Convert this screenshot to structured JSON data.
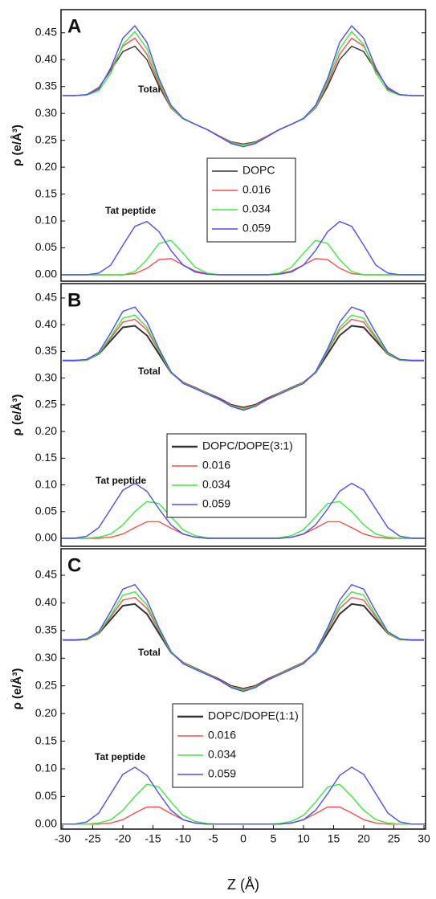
{
  "chart_data": [
    {
      "type": "line",
      "panel_label": "A",
      "ylabel": "ρ (e/Å³)",
      "xlim": [
        -30,
        30
      ],
      "ylim": [
        -0.012,
        0.493
      ],
      "x": [
        -30,
        -28,
        -26,
        -24,
        -22,
        -20,
        -18,
        -16,
        -14,
        -12,
        -10,
        -8,
        -6,
        -4,
        -2,
        0,
        2,
        4,
        6,
        8,
        10,
        12,
        14,
        16,
        18,
        20,
        22,
        24,
        26,
        28,
        30
      ],
      "yticks": [
        {
          "value": 0,
          "label": "0.00"
        },
        {
          "value": 0.05,
          "label": "0.05"
        },
        {
          "value": 0.1,
          "label": "0.10"
        },
        {
          "value": 0.15,
          "label": "0.15"
        },
        {
          "value": 0.2,
          "label": "0.20"
        },
        {
          "value": 0.25,
          "label": "0.25"
        },
        {
          "value": 0.3,
          "label": "0.30"
        },
        {
          "value": 0.35,
          "label": "0.35"
        },
        {
          "value": 0.4,
          "label": "0.40"
        },
        {
          "value": 0.45,
          "label": "0.45"
        }
      ],
      "legend": "center",
      "total_label": "Total",
      "series": [
        {
          "name": "DOPC",
          "color": "#333333",
          "values": [
            0.333,
            0.333,
            0.335,
            0.348,
            0.38,
            0.415,
            0.425,
            0.4,
            0.35,
            0.31,
            0.29,
            0.28,
            0.27,
            0.258,
            0.247,
            0.243,
            0.247,
            0.258,
            0.27,
            0.28,
            0.29,
            0.31,
            0.35,
            0.4,
            0.425,
            0.415,
            0.38,
            0.348,
            0.335,
            0.333,
            0.333
          ]
        },
        {
          "name": "0.016",
          "color": "#f0524f",
          "values": [
            0.333,
            0.333,
            0.335,
            0.347,
            0.382,
            0.425,
            0.44,
            0.41,
            0.355,
            0.31,
            0.29,
            0.28,
            0.27,
            0.258,
            0.246,
            0.242,
            0.246,
            0.258,
            0.27,
            0.28,
            0.29,
            0.31,
            0.355,
            0.41,
            0.44,
            0.425,
            0.382,
            0.347,
            0.335,
            0.333,
            0.333
          ]
        },
        {
          "name": "0.034",
          "color": "#3ee83e",
          "values": [
            0.333,
            0.333,
            0.334,
            0.342,
            0.375,
            0.428,
            0.452,
            0.42,
            0.36,
            0.312,
            0.29,
            0.28,
            0.27,
            0.257,
            0.245,
            0.241,
            0.245,
            0.257,
            0.27,
            0.28,
            0.29,
            0.312,
            0.36,
            0.42,
            0.452,
            0.428,
            0.375,
            0.342,
            0.334,
            0.333,
            0.333
          ]
        },
        {
          "name": "0.059",
          "color": "#4f4ff0",
          "values": [
            0.333,
            0.333,
            0.335,
            0.345,
            0.385,
            0.44,
            0.463,
            0.432,
            0.365,
            0.315,
            0.291,
            0.28,
            0.27,
            0.257,
            0.244,
            0.238,
            0.244,
            0.257,
            0.27,
            0.28,
            0.291,
            0.315,
            0.365,
            0.432,
            0.463,
            0.44,
            0.385,
            0.345,
            0.335,
            0.333,
            0.333
          ]
        }
      ],
      "tat_peptide": {
        "label": "Tat peptide",
        "series": [
          {
            "values": [
              0,
              0,
              0,
              0,
              0,
              0,
              0.002,
              0.012,
              0.028,
              0.03,
              0.018,
              0.007,
              0.002,
              0,
              0,
              0,
              0,
              0,
              0.002,
              0.007,
              0.018,
              0.03,
              0.028,
              0.012,
              0.002,
              0,
              0,
              0,
              0,
              0,
              0
            ]
          },
          {
            "values": [
              0,
              0,
              0,
              0,
              0,
              0,
              0.006,
              0.028,
              0.058,
              0.064,
              0.04,
              0.014,
              0.003,
              0,
              0,
              0,
              0,
              0,
              0.003,
              0.014,
              0.04,
              0.064,
              0.058,
              0.028,
              0.006,
              0,
              0,
              0,
              0,
              0,
              0
            ]
          },
          {
            "values": [
              0,
              0,
              0,
              0.003,
              0.018,
              0.055,
              0.09,
              0.099,
              0.08,
              0.045,
              0.018,
              0.005,
              0.001,
              0,
              0,
              0,
              0,
              0,
              0.001,
              0.005,
              0.018,
              0.045,
              0.08,
              0.099,
              0.09,
              0.055,
              0.018,
              0.003,
              0,
              0,
              0
            ]
          }
        ]
      }
    },
    {
      "type": "line",
      "panel_label": "B",
      "ylabel": "ρ (e/Å³)",
      "xlim": [
        -30,
        30
      ],
      "ylim": [
        -0.015,
        0.477
      ],
      "x": [
        -30,
        -28,
        -26,
        -24,
        -22,
        -20,
        -18,
        -16,
        -14,
        -12,
        -10,
        -8,
        -6,
        -4,
        -2,
        0,
        2,
        4,
        6,
        8,
        10,
        12,
        14,
        16,
        18,
        20,
        22,
        24,
        26,
        28,
        30
      ],
      "yticks": [
        {
          "value": 0,
          "label": "0.00"
        },
        {
          "value": 0.05,
          "label": "0.05"
        },
        {
          "value": 0.1,
          "label": "0.10"
        },
        {
          "value": 0.15,
          "label": "0.15"
        },
        {
          "value": 0.2,
          "label": "0.20"
        },
        {
          "value": 0.25,
          "label": "0.25"
        },
        {
          "value": 0.3,
          "label": "0.30"
        },
        {
          "value": 0.35,
          "label": "0.35"
        },
        {
          "value": 0.4,
          "label": "0.40"
        },
        {
          "value": 0.45,
          "label": "0.45"
        }
      ],
      "legend": "center",
      "total_label": "Total",
      "series": [
        {
          "name": "DOPC/DOPE(3:1)",
          "color": "#333333",
          "values": [
            0.333,
            0.333,
            0.334,
            0.345,
            0.37,
            0.395,
            0.398,
            0.38,
            0.345,
            0.31,
            0.292,
            0.282,
            0.272,
            0.262,
            0.25,
            0.245,
            0.25,
            0.262,
            0.272,
            0.282,
            0.292,
            0.31,
            0.345,
            0.38,
            0.398,
            0.395,
            0.37,
            0.345,
            0.334,
            0.333,
            0.333
          ]
        },
        {
          "name": "0.016",
          "color": "#f0524f",
          "values": [
            0.333,
            0.333,
            0.334,
            0.345,
            0.375,
            0.405,
            0.41,
            0.39,
            0.35,
            0.31,
            0.292,
            0.282,
            0.272,
            0.261,
            0.249,
            0.244,
            0.249,
            0.261,
            0.272,
            0.282,
            0.292,
            0.31,
            0.35,
            0.39,
            0.41,
            0.405,
            0.375,
            0.345,
            0.334,
            0.333,
            0.333
          ]
        },
        {
          "name": "0.034",
          "color": "#3ee83e",
          "values": [
            0.333,
            0.333,
            0.334,
            0.346,
            0.378,
            0.412,
            0.418,
            0.395,
            0.352,
            0.31,
            0.291,
            0.281,
            0.271,
            0.26,
            0.248,
            0.242,
            0.248,
            0.26,
            0.271,
            0.281,
            0.291,
            0.31,
            0.352,
            0.395,
            0.418,
            0.412,
            0.378,
            0.346,
            0.334,
            0.333,
            0.333
          ]
        },
        {
          "name": "0.059",
          "color": "#4f4ff0",
          "values": [
            0.333,
            0.333,
            0.335,
            0.348,
            0.385,
            0.425,
            0.433,
            0.405,
            0.355,
            0.312,
            0.29,
            0.28,
            0.27,
            0.26,
            0.247,
            0.24,
            0.247,
            0.26,
            0.27,
            0.28,
            0.29,
            0.312,
            0.355,
            0.405,
            0.433,
            0.425,
            0.385,
            0.348,
            0.335,
            0.333,
            0.333
          ]
        }
      ],
      "tat_peptide": {
        "label": "Tat peptide",
        "series": [
          {
            "values": [
              0,
              0,
              0,
              0,
              0.002,
              0.008,
              0.02,
              0.031,
              0.031,
              0.019,
              0.008,
              0.002,
              0,
              0,
              0,
              0,
              0,
              0,
              0,
              0.002,
              0.008,
              0.019,
              0.031,
              0.031,
              0.02,
              0.008,
              0.002,
              0,
              0,
              0,
              0
            ]
          },
          {
            "values": [
              0,
              0,
              0,
              0.002,
              0.008,
              0.025,
              0.05,
              0.069,
              0.065,
              0.04,
              0.016,
              0.005,
              0.001,
              0,
              0,
              0,
              0,
              0,
              0.001,
              0.005,
              0.016,
              0.04,
              0.065,
              0.069,
              0.05,
              0.025,
              0.008,
              0.002,
              0,
              0,
              0
            ]
          },
          {
            "values": [
              0,
              0,
              0.004,
              0.02,
              0.055,
              0.09,
              0.103,
              0.088,
              0.055,
              0.025,
              0.008,
              0.002,
              0,
              0,
              0,
              0,
              0,
              0,
              0,
              0.002,
              0.008,
              0.025,
              0.055,
              0.088,
              0.103,
              0.09,
              0.055,
              0.02,
              0.004,
              0,
              0
            ]
          }
        ]
      }
    },
    {
      "type": "line",
      "panel_label": "C",
      "ylabel": "ρ (e/Å³)",
      "xlabel": "Z (Å)",
      "xlim": [
        -30,
        30
      ],
      "ylim": [
        -0.009,
        0.498
      ],
      "x": [
        -30,
        -28,
        -26,
        -24,
        -22,
        -20,
        -18,
        -16,
        -14,
        -12,
        -10,
        -8,
        -6,
        -4,
        -2,
        0,
        2,
        4,
        6,
        8,
        10,
        12,
        14,
        16,
        18,
        20,
        22,
        24,
        26,
        28,
        30
      ],
      "xticks": [
        -30,
        -25,
        -20,
        -15,
        -10,
        -5,
        0,
        5,
        10,
        15,
        20,
        25,
        30
      ],
      "yticks": [
        {
          "value": 0,
          "label": "0.00"
        },
        {
          "value": 0.05,
          "label": "0.05"
        },
        {
          "value": 0.1,
          "label": "0.10"
        },
        {
          "value": 0.15,
          "label": "0.15"
        },
        {
          "value": 0.2,
          "label": "0.20"
        },
        {
          "value": 0.25,
          "label": "0.25"
        },
        {
          "value": 0.3,
          "label": "0.30"
        },
        {
          "value": 0.35,
          "label": "0.35"
        },
        {
          "value": 0.4,
          "label": "0.40"
        },
        {
          "value": 0.45,
          "label": "0.45"
        }
      ],
      "legend": "center",
      "total_label": "Total",
      "series": [
        {
          "name": "DOPC/DOPE(1:1)",
          "color": "#333333",
          "values": [
            0.333,
            0.333,
            0.334,
            0.345,
            0.37,
            0.395,
            0.398,
            0.38,
            0.345,
            0.31,
            0.292,
            0.282,
            0.272,
            0.262,
            0.25,
            0.245,
            0.25,
            0.262,
            0.272,
            0.282,
            0.292,
            0.31,
            0.345,
            0.38,
            0.398,
            0.395,
            0.37,
            0.345,
            0.334,
            0.333,
            0.333
          ]
        },
        {
          "name": "0.016",
          "color": "#f0524f",
          "values": [
            0.333,
            0.333,
            0.334,
            0.345,
            0.375,
            0.405,
            0.41,
            0.39,
            0.35,
            0.31,
            0.292,
            0.282,
            0.272,
            0.261,
            0.249,
            0.244,
            0.249,
            0.261,
            0.272,
            0.282,
            0.292,
            0.31,
            0.35,
            0.39,
            0.41,
            0.405,
            0.375,
            0.345,
            0.334,
            0.333,
            0.333
          ]
        },
        {
          "name": "0.034",
          "color": "#3ee83e",
          "values": [
            0.333,
            0.333,
            0.334,
            0.346,
            0.378,
            0.414,
            0.42,
            0.396,
            0.352,
            0.31,
            0.291,
            0.281,
            0.271,
            0.26,
            0.248,
            0.242,
            0.248,
            0.26,
            0.271,
            0.281,
            0.291,
            0.31,
            0.352,
            0.396,
            0.42,
            0.414,
            0.378,
            0.346,
            0.334,
            0.333,
            0.333
          ]
        },
        {
          "name": "0.059",
          "color": "#4f4ff0",
          "values": [
            0.333,
            0.333,
            0.335,
            0.348,
            0.385,
            0.425,
            0.433,
            0.405,
            0.355,
            0.312,
            0.29,
            0.28,
            0.27,
            0.26,
            0.247,
            0.24,
            0.247,
            0.26,
            0.27,
            0.28,
            0.29,
            0.312,
            0.355,
            0.405,
            0.433,
            0.425,
            0.385,
            0.348,
            0.335,
            0.333,
            0.333
          ]
        }
      ],
      "tat_peptide": {
        "label": "Tat peptide",
        "series": [
          {
            "values": [
              0,
              0,
              0,
              0,
              0.002,
              0.008,
              0.02,
              0.031,
              0.031,
              0.019,
              0.008,
              0.002,
              0,
              0,
              0,
              0,
              0,
              0,
              0,
              0.002,
              0.008,
              0.019,
              0.031,
              0.031,
              0.02,
              0.008,
              0.002,
              0,
              0,
              0,
              0
            ]
          },
          {
            "values": [
              0,
              0,
              0,
              0.002,
              0.008,
              0.025,
              0.05,
              0.072,
              0.067,
              0.04,
              0.016,
              0.005,
              0.001,
              0,
              0,
              0,
              0,
              0,
              0.001,
              0.005,
              0.016,
              0.04,
              0.067,
              0.072,
              0.05,
              0.025,
              0.008,
              0.002,
              0,
              0,
              0
            ]
          },
          {
            "values": [
              0,
              0,
              0.004,
              0.02,
              0.055,
              0.09,
              0.103,
              0.088,
              0.055,
              0.025,
              0.008,
              0.002,
              0,
              0,
              0,
              0,
              0,
              0,
              0,
              0.002,
              0.008,
              0.025,
              0.055,
              0.088,
              0.103,
              0.09,
              0.055,
              0.02,
              0.004,
              0,
              0
            ]
          }
        ]
      }
    }
  ]
}
